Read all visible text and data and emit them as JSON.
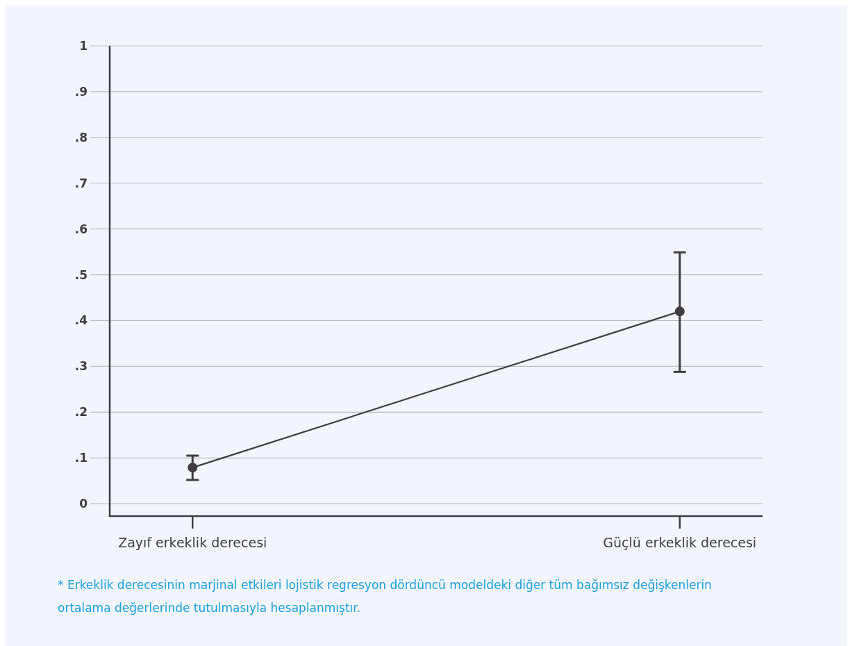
{
  "chart_data": {
    "type": "line",
    "categories": [
      "Zayıf erkeklik derecesi",
      "Güçlü erkeklik derecesi"
    ],
    "series": [
      {
        "color": "#3f3d40",
        "values": [
          0.079,
          0.42
        ],
        "errors": [
          [
            0.052,
            0.105
          ],
          [
            0.288,
            0.549
          ]
        ]
      }
    ],
    "ylim": [
      -0.027,
      1
    ],
    "yticks": [
      {
        "value": 0,
        "label": "0"
      },
      {
        "value": 0.1,
        "label": ".1"
      },
      {
        "value": 0.2,
        "label": ".2"
      },
      {
        "value": 0.3,
        "label": ".3"
      },
      {
        "value": 0.4,
        "label": ".4"
      },
      {
        "value": 0.5,
        "label": ".5"
      },
      {
        "value": 0.6,
        "label": ".6"
      },
      {
        "value": 0.7,
        "label": ".7"
      },
      {
        "value": 0.8,
        "label": ".8"
      },
      {
        "value": 0.9,
        "label": ".9"
      },
      1
    ],
    "grid": "y",
    "marker": "circle",
    "line_style": "solid",
    "annotations": [
      "* Erkeklik derecesinin marjinal etkileri lojistik regresyon dördüncü modeldeki diğer tüm bağımsız değişkenlerin ortalama değerlerinde tutulmasıyla hesaplanmıştır."
    ]
  }
}
